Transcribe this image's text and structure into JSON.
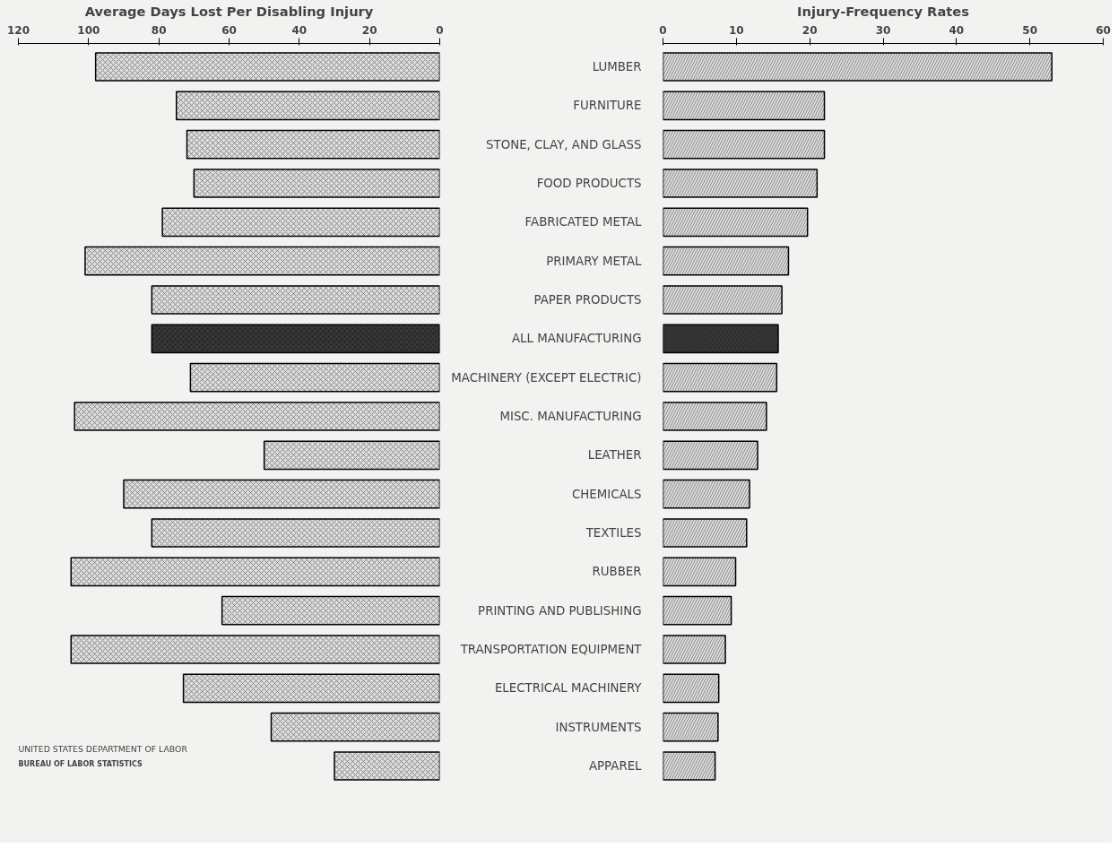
{
  "chart_data": [
    {
      "type": "bar",
      "orientation": "horizontal",
      "xlabel": "Average Days Lost Per Disabling Injury",
      "tick_labels": "x",
      "categories": [
        null,
        null,
        null,
        null,
        null,
        null,
        null,
        null,
        null,
        null,
        null,
        null,
        null,
        null,
        null,
        null,
        null,
        null,
        null
      ],
      "values": [
        98,
        75,
        72,
        70,
        79,
        101,
        82,
        82,
        71,
        104,
        50,
        90,
        82,
        105,
        62,
        105,
        73,
        48,
        30
      ],
      "colors": [
        "#dcdcdc",
        "#dcdcdc",
        "#dcdcdc",
        "#dcdcdc",
        "#dcdcdc",
        "#dcdcdc",
        "#dcdcdc",
        "#2a2a2a",
        "#dcdcdc",
        "#dcdcdc",
        "#dcdcdc",
        "#dcdcdc",
        "#dcdcdc",
        "#dcdcdc",
        "#dcdcdc",
        "#dcdcdc",
        "#dcdcdc",
        "#dcdcdc",
        "#dcdcdc"
      ],
      "xlim": [
        120,
        0
      ],
      "xticks": [
        120,
        100,
        80,
        60,
        40,
        20,
        0
      ],
      "annotations": [
        "UNITED STATES DEPARTMENT OF LABOR",
        "BUREAU OF LABOR STATISTICS"
      ]
    },
    {
      "type": "bar",
      "orientation": "horizontal",
      "xlabel": "Injury-Frequency Rates",
      "categories": [
        "LUMBER",
        "FURNITURE",
        "STONE, CLAY, AND GLASS",
        "FOOD PRODUCTS",
        "FABRICATED METAL",
        "PRIMARY METAL",
        "PAPER PRODUCTS",
        "ALL MANUFACTURING",
        "MACHINERY (EXCEPT ELECTRIC)",
        "MISC. MANUFACTURING",
        "LEATHER",
        "CHEMICALS",
        "TEXTILES",
        "RUBBER",
        "PRINTING AND PUBLISHING",
        "TRANSPORTATION EQUIPMENT",
        "ELECTRICAL MACHINERY",
        "INSTRUMENTS",
        "APPAREL"
      ],
      "values": [
        53,
        22,
        22,
        21,
        19.7,
        17.1,
        16.2,
        15.7,
        15.5,
        14.1,
        12.9,
        11.8,
        11.4,
        9.9,
        9.3,
        8.5,
        7.6,
        7.5,
        7.1
      ],
      "colors": [
        "#dcdcdc",
        "#dcdcdc",
        "#dcdcdc",
        "#dcdcdc",
        "#dcdcdc",
        "#dcdcdc",
        "#dcdcdc",
        "#2a2a2a",
        "#dcdcdc",
        "#dcdcdc",
        "#dcdcdc",
        "#dcdcdc",
        "#dcdcdc",
        "#dcdcdc",
        "#dcdcdc",
        "#dcdcdc",
        "#dcdcdc",
        "#dcdcdc",
        "#dcdcdc"
      ],
      "xlim": [
        0,
        60
      ],
      "xticks": [
        0,
        10,
        20,
        30,
        40,
        50,
        60
      ]
    }
  ]
}
